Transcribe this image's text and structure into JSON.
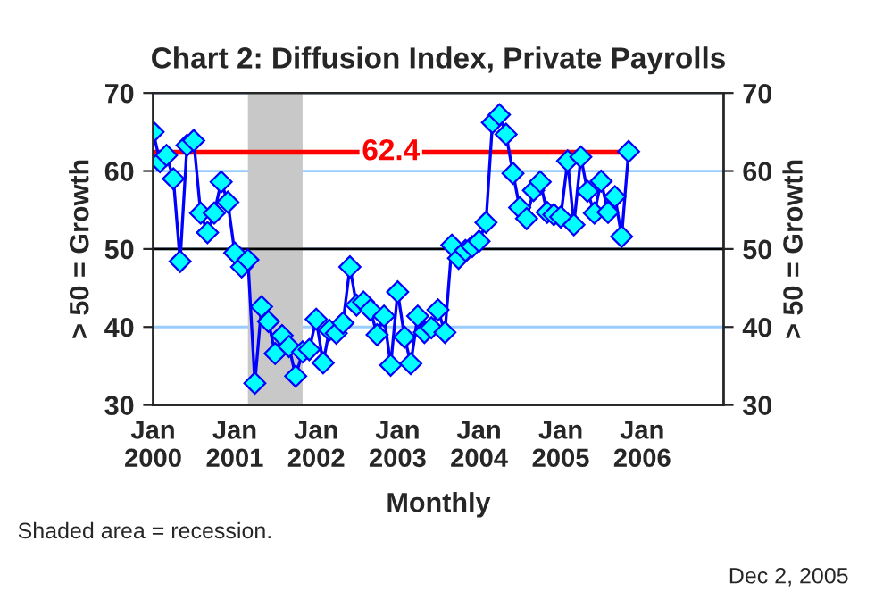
{
  "chart_data": {
    "type": "line",
    "title": "Chart 2: Diffusion Index, Private Payrolls",
    "xlabel": "Monthly",
    "ylabel": "> 50 = Growth",
    "y2label": "> 50 = Growth",
    "x": [
      "2000-01",
      "2000-02",
      "2000-03",
      "2000-04",
      "2000-05",
      "2000-06",
      "2000-07",
      "2000-08",
      "2000-09",
      "2000-10",
      "2000-11",
      "2000-12",
      "2001-01",
      "2001-02",
      "2001-03",
      "2001-04",
      "2001-05",
      "2001-06",
      "2001-07",
      "2001-08",
      "2001-09",
      "2001-10",
      "2001-11",
      "2001-12",
      "2002-01",
      "2002-02",
      "2002-03",
      "2002-04",
      "2002-05",
      "2002-06",
      "2002-07",
      "2002-08",
      "2002-09",
      "2002-10",
      "2002-11",
      "2002-12",
      "2003-01",
      "2003-02",
      "2003-03",
      "2003-04",
      "2003-05",
      "2003-06",
      "2003-07",
      "2003-08",
      "2003-09",
      "2003-10",
      "2003-11",
      "2003-12",
      "2004-01",
      "2004-02",
      "2004-03",
      "2004-04",
      "2004-05",
      "2004-06",
      "2004-07",
      "2004-08",
      "2004-09",
      "2004-10",
      "2004-11",
      "2004-12",
      "2005-01",
      "2005-02",
      "2005-03",
      "2005-04",
      "2005-05",
      "2005-06",
      "2005-07",
      "2005-08",
      "2005-09",
      "2005-10",
      "2005-11"
    ],
    "series": [
      {
        "color": "#0000ff",
        "values": [
          65.0,
          61.2,
          62.0,
          59.0,
          48.4,
          63.3,
          63.9,
          54.6,
          52.1,
          54.6,
          58.6,
          56.0,
          49.5,
          47.7,
          48.6,
          32.8,
          42.6,
          40.7,
          36.6,
          38.9,
          37.5,
          33.7,
          36.8,
          37.1,
          41.0,
          35.4,
          39.6,
          39.2,
          40.5,
          47.7,
          42.8,
          43.2,
          42.2,
          39.0,
          41.4,
          35.1,
          44.5,
          38.7,
          35.3,
          41.4,
          39.3,
          39.9,
          42.2,
          39.3,
          50.5,
          48.8,
          49.8,
          50.3,
          51.0,
          53.4,
          66.2,
          67.2,
          64.7,
          59.7,
          55.3,
          53.9,
          57.5,
          58.6,
          54.7,
          54.4,
          54.1,
          61.3,
          53.1,
          61.8,
          57.4,
          54.6,
          58.7,
          54.7,
          56.7,
          51.6,
          62.5
        ]
      }
    ],
    "marker": "diamond",
    "line_style": "solid",
    "xlim": [
      "2000-01",
      "2007-01"
    ],
    "xticks": [
      {
        "value": "2000-01",
        "label": "Jan\n2000"
      },
      {
        "value": "2001-01",
        "label": "Jan\n2001"
      },
      {
        "value": "2002-01",
        "label": "Jan\n2002"
      },
      {
        "value": "2003-01",
        "label": "Jan\n2003"
      },
      {
        "value": "2004-01",
        "label": "Jan\n2004"
      },
      {
        "value": "2005-01",
        "label": "Jan\n2005"
      },
      {
        "value": "2006-01",
        "label": "Jan\n2006"
      }
    ],
    "ylim": [
      30,
      70
    ],
    "yticks": [
      30,
      40,
      50,
      60,
      70
    ],
    "y2lim": [
      30,
      70
    ],
    "y2ticks": [
      30,
      40,
      50,
      60,
      70
    ],
    "grid": "y",
    "ref_lines": [
      {
        "axis": "y",
        "value": 62.4,
        "label": "62.4",
        "color": "#ff0000"
      },
      {
        "axis": "y",
        "value": 50,
        "label": null,
        "color": "#000000"
      }
    ],
    "bands": [
      {
        "axis": "x",
        "from": "2001-03",
        "to": "2001-11",
        "label": null,
        "color": "#c8c8c8"
      }
    ],
    "annotations": [
      "Shaded area = recession.",
      "Dec 2, 2005"
    ]
  }
}
